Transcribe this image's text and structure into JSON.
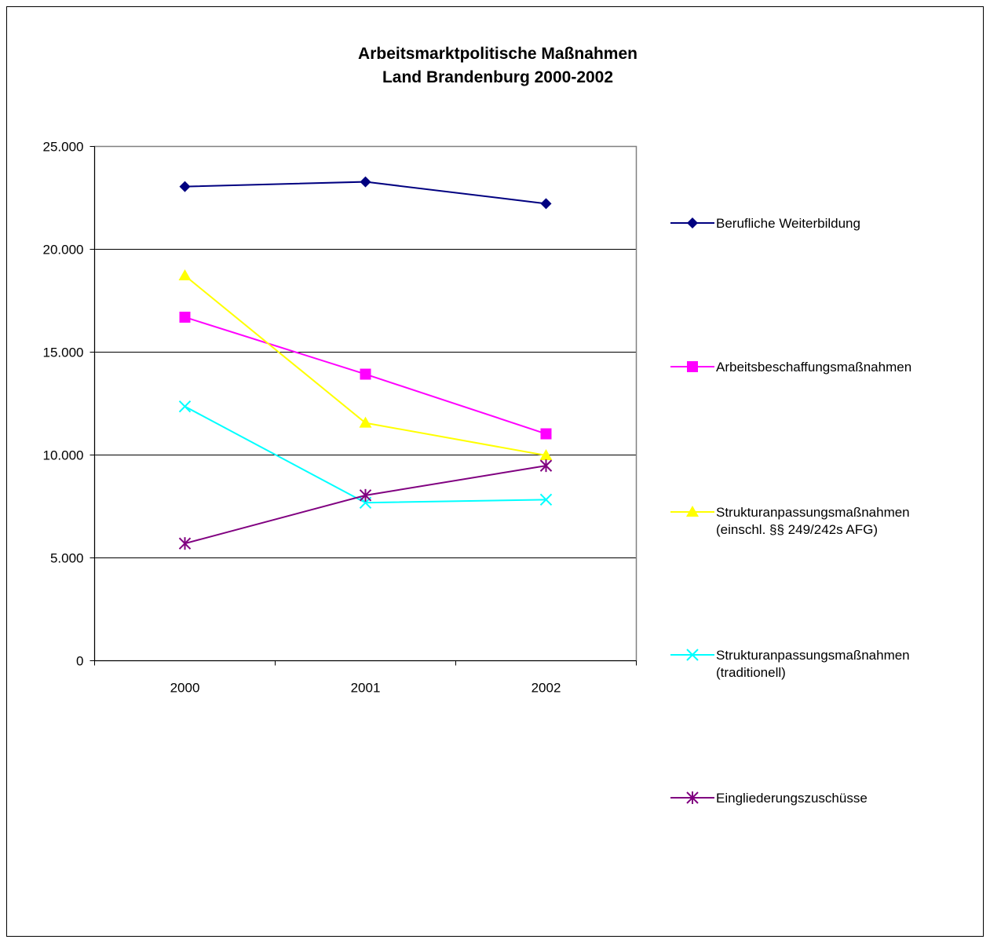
{
  "chart_data": {
    "type": "line",
    "title": "Arbeitsmarktpolitische Maßnahmen\nLand Brandenburg 2000-2002",
    "categories": [
      "2000",
      "2001",
      "2002"
    ],
    "ylim": [
      0,
      25000
    ],
    "yticks": [
      0,
      5000,
      10000,
      15000,
      20000,
      25000
    ],
    "ytick_labels": [
      "0",
      "5.000",
      "10.000",
      "15.000",
      "20.000",
      "25.000"
    ],
    "xlabel": "",
    "ylabel": "",
    "grid": true,
    "legend_position": "right",
    "series": [
      {
        "name": "Berufliche Weiterbildung",
        "values": [
          23050,
          23280,
          22220
        ],
        "color": "#000080",
        "marker": "diamond"
      },
      {
        "name": "Arbeitsbeschaffungsmaßnahmen",
        "values": [
          16700,
          13930,
          11030
        ],
        "color": "#FF00FF",
        "marker": "square"
      },
      {
        "name": "Strukturanpassungsmaßnahmen\n(einschl. §§ 249/242s AFG)",
        "values": [
          18720,
          11560,
          9980
        ],
        "color": "#FFFF00",
        "marker": "triangle"
      },
      {
        "name": "Strukturanpassungsmaßnahmen\n(traditionell)",
        "values": [
          12360,
          7680,
          7830
        ],
        "color": "#00FFFF",
        "marker": "x"
      },
      {
        "name": "Eingliederungszuschüsse",
        "values": [
          5700,
          8040,
          9480
        ],
        "color": "#800080",
        "marker": "star"
      }
    ]
  }
}
